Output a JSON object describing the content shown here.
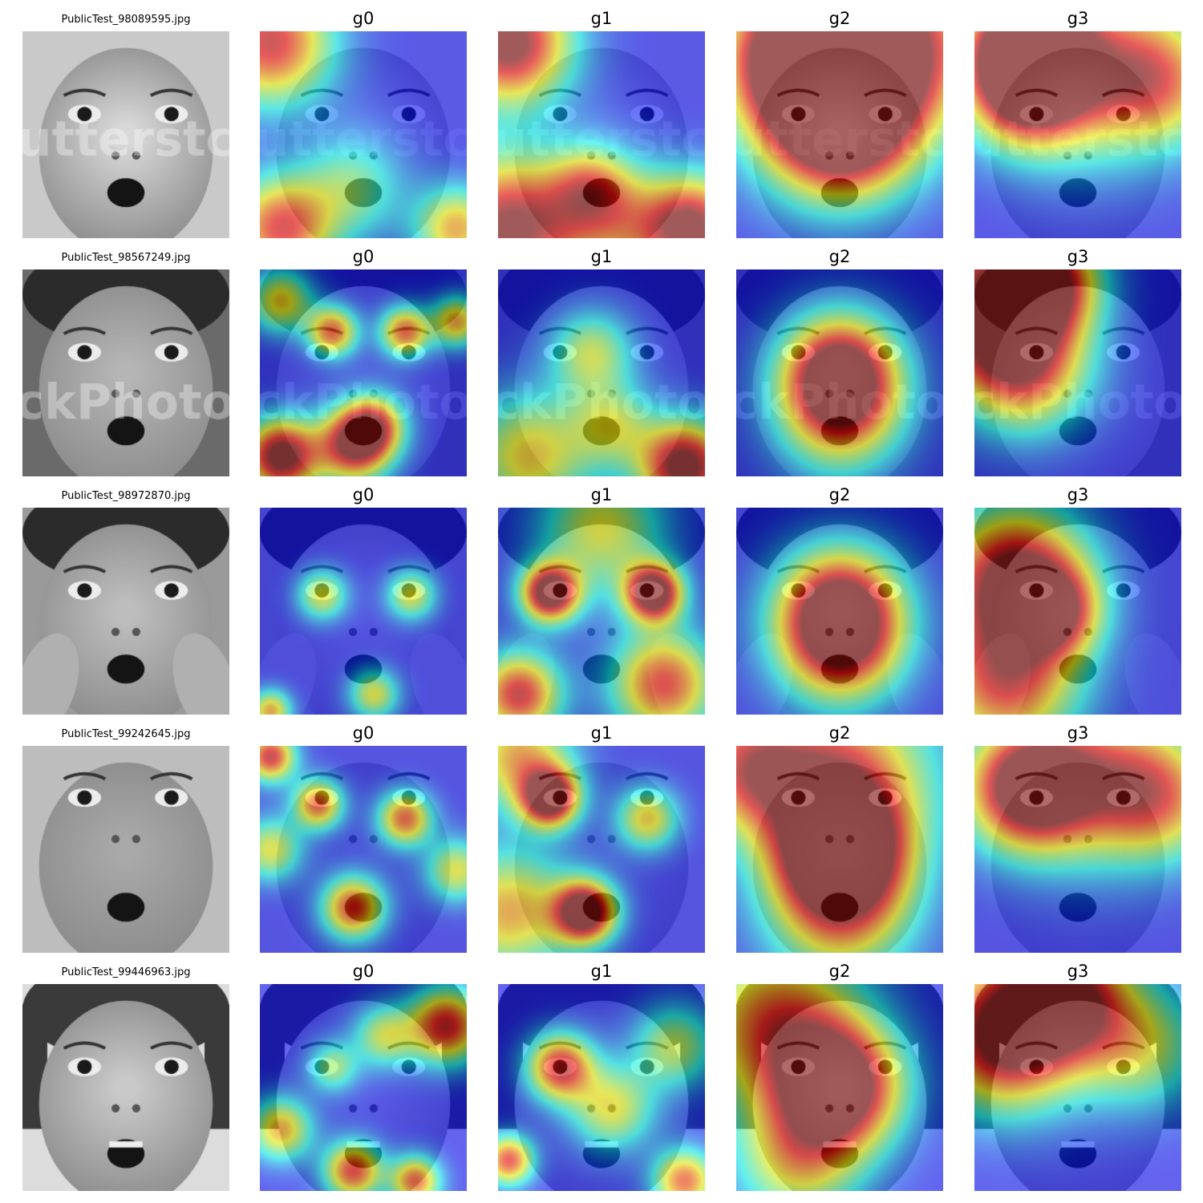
{
  "figure": {
    "columns": [
      "original",
      "g0",
      "g1",
      "g2",
      "g3"
    ],
    "colormap": "jet",
    "rows": [
      {
        "filename": "PublicTest_98089595.jpg",
        "titles": [
          "PublicTest_98089595.jpg",
          "g0",
          "g1",
          "g2",
          "g3"
        ],
        "watermark": "utterstc",
        "face": "baby",
        "heat": {
          "g0": [
            [
              0.05,
              0.05,
              0.3,
              0.8
            ],
            [
              0.1,
              0.95,
              0.25,
              0.75
            ],
            [
              0.95,
              0.95,
              0.2,
              0.6
            ],
            [
              0.45,
              0.75,
              0.25,
              0.35
            ]
          ],
          "g1": [
            [
              0.05,
              0.05,
              0.3,
              0.95
            ],
            [
              0.05,
              0.95,
              0.35,
              0.9
            ],
            [
              0.95,
              0.95,
              0.25,
              0.85
            ],
            [
              0.45,
              0.75,
              0.2,
              0.45
            ],
            [
              0.6,
              0.95,
              0.3,
              0.4
            ]
          ],
          "g2": [
            [
              0.5,
              0.45,
              0.35,
              0.95
            ],
            [
              0.3,
              0.1,
              0.35,
              0.8
            ],
            [
              0.8,
              0.05,
              0.4,
              0.6
            ],
            [
              0.5,
              0.15,
              0.5,
              0.55
            ]
          ],
          "g3": [
            [
              0.25,
              0.25,
              0.3,
              0.95
            ],
            [
              0.25,
              0.05,
              0.25,
              0.85
            ],
            [
              0.6,
              0.15,
              0.45,
              0.55
            ],
            [
              0.9,
              0.25,
              0.3,
              0.45
            ]
          ]
        }
      },
      {
        "filename": "PublicTest_98567249.jpg",
        "titles": [
          "PublicTest_98567249.jpg",
          "g0",
          "g1",
          "g2",
          "g3"
        ],
        "watermark": "StockPhotoPro",
        "face": "boy",
        "heat": {
          "g0": [
            [
              0.1,
              0.9,
              0.18,
              0.95
            ],
            [
              0.45,
              0.85,
              0.18,
              0.8
            ],
            [
              0.35,
              0.3,
              0.12,
              0.7
            ],
            [
              0.7,
              0.3,
              0.12,
              0.7
            ],
            [
              0.1,
              0.15,
              0.15,
              0.55
            ],
            [
              0.95,
              0.25,
              0.12,
              0.6
            ],
            [
              0.55,
              0.75,
              0.15,
              0.6
            ]
          ],
          "g1": [
            [
              0.9,
              0.95,
              0.22,
              0.95
            ],
            [
              0.45,
              0.4,
              0.2,
              0.45
            ],
            [
              0.15,
              0.9,
              0.3,
              0.55
            ],
            [
              0.55,
              0.75,
              0.2,
              0.4
            ]
          ],
          "g2": [
            [
              0.5,
              0.5,
              0.28,
              0.95
            ],
            [
              0.5,
              0.72,
              0.3,
              0.45
            ]
          ],
          "g3": [
            [
              0.1,
              0.2,
              0.35,
              0.95
            ],
            [
              0.25,
              0.5,
              0.3,
              0.55
            ],
            [
              0.35,
              0.05,
              0.25,
              0.7
            ]
          ]
        }
      },
      {
        "filename": "PublicTest_98972870.jpg",
        "titles": [
          "PublicTest_98972870.jpg",
          "g0",
          "g1",
          "g2",
          "g3"
        ],
        "watermark": "",
        "face": "boy-hands",
        "heat": {
          "g0": [
            [
              0.3,
              0.42,
              0.12,
              0.5
            ],
            [
              0.73,
              0.42,
              0.12,
              0.5
            ],
            [
              0.05,
              0.98,
              0.1,
              0.6
            ],
            [
              0.55,
              0.9,
              0.12,
              0.5
            ]
          ],
          "g1": [
            [
              0.25,
              0.41,
              0.14,
              1.0
            ],
            [
              0.75,
              0.41,
              0.14,
              1.0
            ],
            [
              0.1,
              0.9,
              0.2,
              0.8
            ],
            [
              0.8,
              0.85,
              0.25,
              0.75
            ],
            [
              0.5,
              0.1,
              0.3,
              0.5
            ]
          ],
          "g2": [
            [
              0.5,
              0.5,
              0.3,
              0.95
            ],
            [
              0.5,
              0.7,
              0.3,
              0.45
            ]
          ],
          "g3": [
            [
              0.2,
              0.35,
              0.35,
              0.95
            ],
            [
              0.15,
              0.85,
              0.35,
              0.7
            ],
            [
              0.4,
              0.5,
              0.2,
              0.5
            ]
          ]
        }
      },
      {
        "filename": "PublicTest_99242645.jpg",
        "titles": [
          "PublicTest_99242645.jpg",
          "g0",
          "g1",
          "g2",
          "g3"
        ],
        "watermark": "",
        "face": "baby-open",
        "heat": {
          "g0": [
            [
              0.28,
              0.28,
              0.12,
              0.7
            ],
            [
              0.7,
              0.35,
              0.13,
              0.7
            ],
            [
              0.45,
              0.78,
              0.15,
              0.75
            ],
            [
              0.05,
              0.05,
              0.12,
              0.8
            ],
            [
              0.05,
              0.5,
              0.15,
              0.5
            ],
            [
              0.95,
              0.6,
              0.15,
              0.5
            ]
          ],
          "g1": [
            [
              0.25,
              0.25,
              0.14,
              0.95
            ],
            [
              0.42,
              0.8,
              0.15,
              1.0
            ],
            [
              0.72,
              0.35,
              0.15,
              0.55
            ],
            [
              0.05,
              0.8,
              0.3,
              0.6
            ],
            [
              0.1,
              0.05,
              0.25,
              0.6
            ]
          ],
          "g2": [
            [
              0.5,
              0.5,
              0.3,
              0.95
            ],
            [
              0.5,
              0.15,
              0.45,
              0.7
            ],
            [
              0.05,
              0.1,
              0.3,
              0.6
            ],
            [
              0.5,
              0.8,
              0.35,
              0.55
            ]
          ],
          "g3": [
            [
              0.25,
              0.2,
              0.3,
              0.95
            ],
            [
              0.6,
              0.15,
              0.4,
              0.55
            ],
            [
              0.9,
              0.25,
              0.3,
              0.5
            ]
          ]
        }
      },
      {
        "filename": "PublicTest_99446963.jpg",
        "titles": [
          "PublicTest_99446963.jpg",
          "g0",
          "g1",
          "g2",
          "g3"
        ],
        "watermark": "",
        "face": "girl",
        "heat": {
          "g0": [
            [
              0.9,
              0.2,
              0.18,
              0.8
            ],
            [
              0.45,
              0.9,
              0.14,
              0.75
            ],
            [
              0.75,
              0.95,
              0.12,
              0.7
            ],
            [
              0.1,
              0.7,
              0.15,
              0.6
            ],
            [
              0.35,
              0.4,
              0.12,
              0.4
            ],
            [
              0.6,
              0.25,
              0.15,
              0.45
            ]
          ],
          "g1": [
            [
              0.3,
              0.4,
              0.16,
              0.8
            ],
            [
              0.05,
              0.85,
              0.12,
              0.75
            ],
            [
              0.9,
              0.95,
              0.15,
              0.7
            ],
            [
              0.55,
              0.6,
              0.2,
              0.5
            ],
            [
              0.85,
              0.3,
              0.2,
              0.45
            ]
          ],
          "g2": [
            [
              0.5,
              0.5,
              0.3,
              0.95
            ],
            [
              0.2,
              0.2,
              0.4,
              0.7
            ],
            [
              0.3,
              0.85,
              0.3,
              0.5
            ]
          ],
          "g3": [
            [
              0.15,
              0.25,
              0.35,
              0.95
            ],
            [
              0.45,
              0.05,
              0.3,
              0.75
            ],
            [
              0.8,
              0.3,
              0.3,
              0.45
            ]
          ]
        }
      }
    ]
  }
}
